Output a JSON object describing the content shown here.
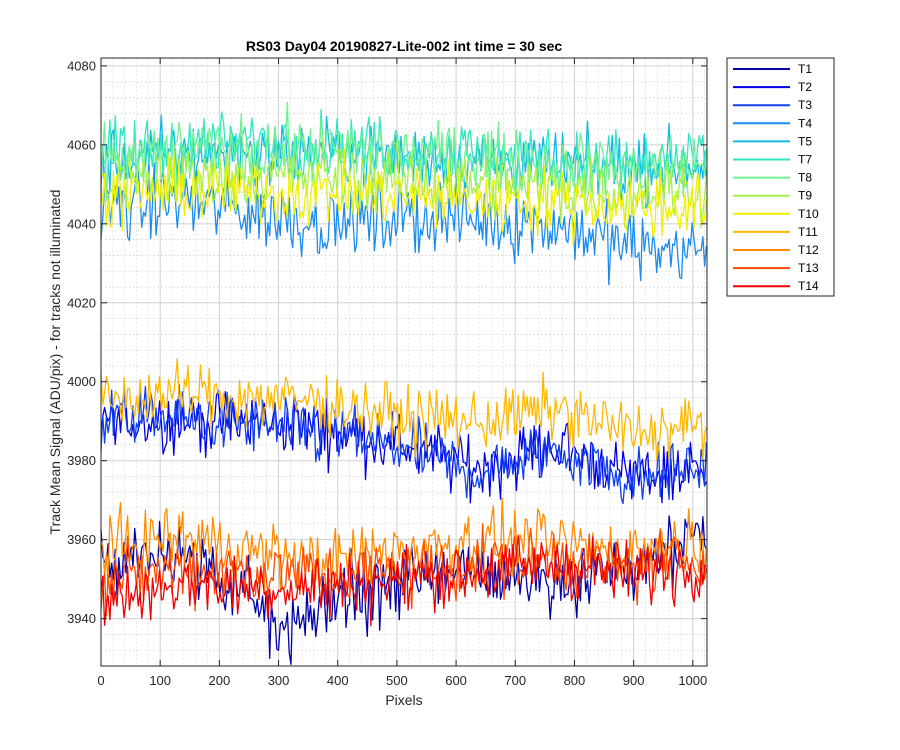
{
  "chart_data": {
    "type": "line",
    "title": "RS03 Day04 20190827-Lite-002 int time = 30 sec",
    "xlabel": "Pixels",
    "ylabel": "Track Mean Signal (ADU/pix) - for tracks not illuminated",
    "xlim": [
      0,
      1024
    ],
    "ylim": [
      3928,
      4082
    ],
    "xticks": [
      0,
      100,
      200,
      300,
      400,
      500,
      600,
      700,
      800,
      900,
      1000
    ],
    "yticks": [
      3940,
      3960,
      3980,
      4000,
      4020,
      4040,
      4060,
      4080
    ],
    "grid": true,
    "minor_grid": true,
    "legend_position": "outside-right",
    "series": [
      {
        "name": "T1",
        "color": "#0000a8",
        "x": [
          0,
          128,
          256,
          320,
          384,
          512,
          640,
          768,
          896,
          1024
        ],
        "values": [
          3955,
          3956,
          3944,
          3938,
          3944,
          3950,
          3952,
          3950,
          3953,
          3960
        ]
      },
      {
        "name": "T2",
        "color": "#0000e8",
        "x": [
          0,
          128,
          256,
          384,
          512,
          640,
          768,
          896,
          1024
        ],
        "values": [
          3990,
          3990,
          3990,
          3988,
          3984,
          3978,
          3984,
          3976,
          3978
        ]
      },
      {
        "name": "T3",
        "color": "#1040f0",
        "x": [
          0,
          128,
          256,
          384,
          512,
          640,
          768,
          896,
          1024
        ],
        "values": [
          3991,
          3991,
          3989,
          3987,
          3983,
          3977,
          3983,
          3975,
          3979
        ]
      },
      {
        "name": "T4",
        "color": "#1a8cf0",
        "x": [
          0,
          128,
          256,
          384,
          512,
          640,
          768,
          896,
          1024
        ],
        "values": [
          4044,
          4046,
          4043,
          4040,
          4042,
          4041,
          4040,
          4034,
          4033
        ]
      },
      {
        "name": "T5",
        "color": "#10b8e8",
        "x": [
          0,
          128,
          256,
          384,
          512,
          640,
          768,
          896,
          1024
        ],
        "values": [
          4055,
          4058,
          4058,
          4058,
          4057,
          4056,
          4055,
          4054,
          4055
        ]
      },
      {
        "name": "T7",
        "color": "#30e6c0",
        "x": [
          0,
          128,
          256,
          384,
          512,
          640,
          768,
          896,
          1024
        ],
        "values": [
          4057,
          4059,
          4061,
          4060,
          4059,
          4058,
          4056,
          4055,
          4056
        ]
      },
      {
        "name": "T8",
        "color": "#70f090",
        "x": [
          0,
          128,
          256,
          384,
          512,
          640,
          768,
          896,
          1024
        ],
        "values": [
          4056,
          4058,
          4059,
          4059,
          4058,
          4057,
          4055,
          4054,
          4055
        ]
      },
      {
        "name": "T9",
        "color": "#a8f048",
        "x": [
          0,
          128,
          256,
          384,
          512,
          640,
          768,
          896,
          1024
        ],
        "values": [
          4050,
          4052,
          4052,
          4052,
          4051,
          4050,
          4049,
          4048,
          4049
        ]
      },
      {
        "name": "T10",
        "color": "#f0f000",
        "x": [
          0,
          128,
          256,
          384,
          512,
          640,
          768,
          896,
          1024
        ],
        "values": [
          4046,
          4049,
          4048,
          4048,
          4047,
          4046,
          4046,
          4044,
          4045
        ]
      },
      {
        "name": "T11",
        "color": "#ffb800",
        "x": [
          0,
          128,
          256,
          384,
          512,
          640,
          768,
          896,
          1024
        ],
        "values": [
          3995,
          3997,
          3996,
          3995,
          3991,
          3990,
          3993,
          3987,
          3989
        ]
      },
      {
        "name": "T12",
        "color": "#ff8c00",
        "x": [
          0,
          128,
          256,
          384,
          512,
          640,
          768,
          896,
          1024
        ],
        "values": [
          3957,
          3961,
          3957,
          3954,
          3958,
          3960,
          3959,
          3957,
          3960
        ]
      },
      {
        "name": "T13",
        "color": "#ff4a00",
        "x": [
          0,
          128,
          256,
          384,
          512,
          640,
          768,
          896,
          1024
        ],
        "values": [
          3949,
          3953,
          3952,
          3951,
          3952,
          3954,
          3955,
          3953,
          3956
        ]
      },
      {
        "name": "T14",
        "color": "#f00000",
        "x": [
          0,
          128,
          256,
          384,
          512,
          640,
          768,
          896,
          1024
        ],
        "values": [
          3944,
          3949,
          3948,
          3948,
          3950,
          3952,
          3954,
          3951,
          3954
        ]
      }
    ]
  }
}
